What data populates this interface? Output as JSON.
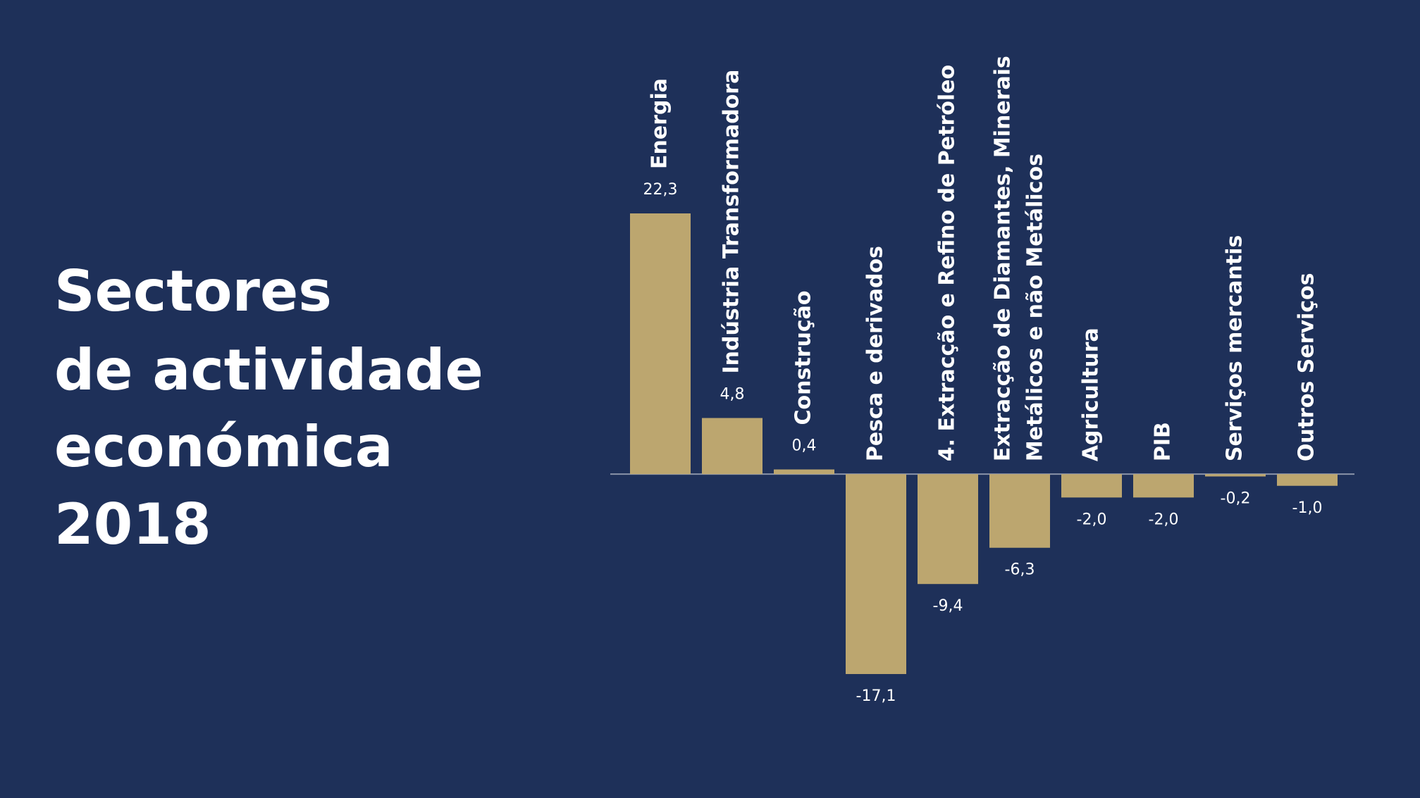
{
  "chart_data": {
    "type": "bar",
    "title": [
      "Sectores",
      "de actividade",
      "económica",
      "2018"
    ],
    "categories": [
      "Energia",
      "Indústria Transformadora",
      "Construção",
      "Pesca e derivados",
      "4. Extracção e Refino de Petróleo",
      [
        "Extracção de Diamantes, Minerais",
        "Metálicos e não Metálicos"
      ],
      "Agricultura",
      "PIB",
      "Serviços mercantis",
      "Outros Serviços"
    ],
    "values": [
      22.3,
      4.8,
      0.4,
      -17.1,
      -9.4,
      -6.3,
      -2.0,
      -2.0,
      -0.2,
      -1.0
    ],
    "value_labels": [
      "22,3",
      "4,8",
      "0,4",
      "-17,1",
      "-9,4",
      "-6,3",
      "-2,0",
      "-2,0",
      "-0,2",
      "-1,0"
    ],
    "color": "#bca66f",
    "ylim": [
      -17.1,
      22.3
    ]
  }
}
